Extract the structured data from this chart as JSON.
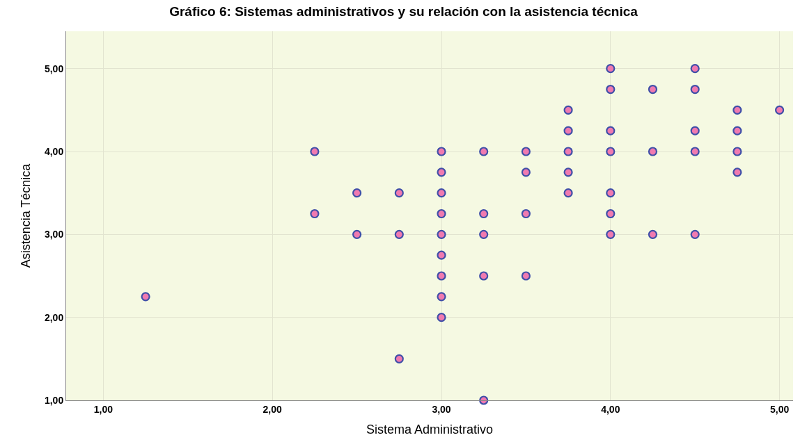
{
  "chart_data": {
    "type": "scatter",
    "title": "Gráfico 6: Sistemas administrativos y su relación con la asistencia técnica",
    "xlabel": "Sistema Administrativo",
    "ylabel": "Asistencia Técnica",
    "x": [
      1.25,
      2.25,
      2.25,
      2.5,
      2.5,
      2.75,
      2.75,
      2.75,
      3.0,
      3.0,
      3.0,
      3.0,
      3.0,
      3.0,
      3.0,
      3.0,
      3.0,
      3.25,
      3.25,
      3.25,
      3.25,
      3.25,
      3.5,
      3.5,
      3.5,
      3.5,
      3.75,
      3.75,
      3.75,
      3.75,
      3.75,
      4.0,
      4.0,
      4.0,
      4.0,
      4.0,
      4.0,
      4.0,
      4.25,
      4.25,
      4.25,
      4.5,
      4.5,
      4.5,
      4.5,
      4.5,
      4.75,
      4.75,
      4.75,
      4.75,
      5.0
    ],
    "series": [
      {
        "color": "#f07ab0",
        "values": [
          2.25,
          4.0,
          3.25,
          3.5,
          3.0,
          3.5,
          3.0,
          1.5,
          4.0,
          3.75,
          3.5,
          3.25,
          3.0,
          2.75,
          2.5,
          2.25,
          2.0,
          4.0,
          3.25,
          3.0,
          2.5,
          1.0,
          4.0,
          3.75,
          3.25,
          2.5,
          4.5,
          4.25,
          4.0,
          3.75,
          3.5,
          5.0,
          4.75,
          4.25,
          4.0,
          3.5,
          3.25,
          3.0,
          4.75,
          4.0,
          3.0,
          5.0,
          4.75,
          4.25,
          4.0,
          3.0,
          4.5,
          4.25,
          4.0,
          3.75,
          4.5
        ]
      }
    ],
    "xlim": [
      0.78,
      5.08
    ],
    "ylim": [
      1.0,
      5.45
    ],
    "xticks": [
      {
        "value": 1,
        "label": "1,00"
      },
      {
        "value": 2,
        "label": "2,00"
      },
      {
        "value": 3,
        "label": "3,00"
      },
      {
        "value": 4,
        "label": "4,00"
      },
      {
        "value": 5,
        "label": "5,00"
      }
    ],
    "yticks": [
      {
        "value": 1,
        "label": "1,00"
      },
      {
        "value": 2,
        "label": "2,00"
      },
      {
        "value": 3,
        "label": "3,00"
      },
      {
        "value": 4,
        "label": "4,00"
      },
      {
        "value": 5,
        "label": "5,00"
      }
    ],
    "grid": true,
    "marker": "circle"
  }
}
